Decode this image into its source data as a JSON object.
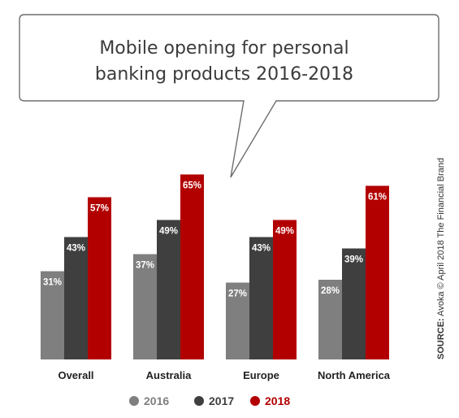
{
  "chart_data": {
    "type": "bar",
    "title_lines": [
      "Mobile opening for personal",
      "banking products 2016-2018"
    ],
    "categories": [
      "Overall",
      "Australia",
      "Europe",
      "North America"
    ],
    "series": [
      {
        "name": "2016",
        "color": "#7f7f7f",
        "values": [
          31,
          37,
          27,
          28
        ],
        "labels": [
          "31%",
          "37%",
          "27%",
          "28%"
        ]
      },
      {
        "name": "2017",
        "color": "#3f3f3f",
        "values": [
          43,
          49,
          43,
          39
        ],
        "labels": [
          "43%",
          "49%",
          "43%",
          "39%"
        ]
      },
      {
        "name": "2018",
        "color": "#b20000",
        "values": [
          57,
          65,
          49,
          61
        ],
        "labels": [
          "57%",
          "65%",
          "49%",
          "61%"
        ]
      }
    ],
    "ylim": [
      0,
      100
    ],
    "grid": false,
    "legend_position": "bottom"
  },
  "source": {
    "label": "SOURCE:",
    "text": " Avoka © April 2018 The Financial Brand"
  }
}
